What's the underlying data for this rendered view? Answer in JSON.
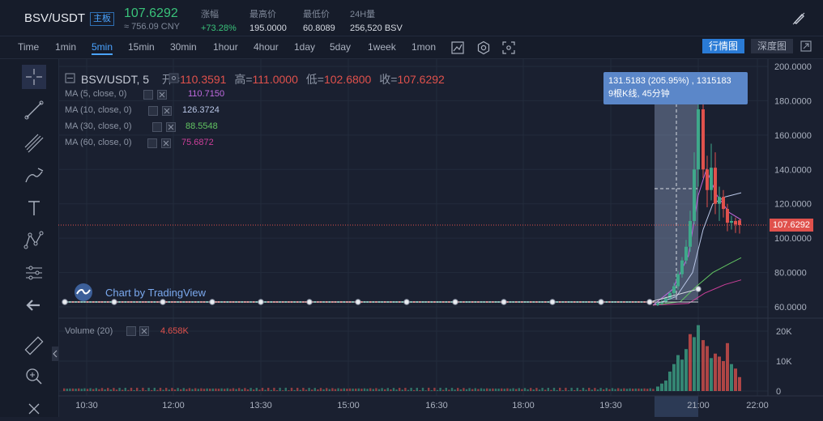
{
  "header": {
    "pair": "BSV/USDT",
    "tag": "主板",
    "price": "107.6292",
    "price_cny": "≈ 756.09 CNY",
    "stats": [
      {
        "label": "涨幅",
        "value": "+73.28%"
      },
      {
        "label": "最高价",
        "value": "195.0000"
      },
      {
        "label": "最低价",
        "value": "60.8089"
      },
      {
        "label": "24H量",
        "value": "256,520 BSV"
      }
    ]
  },
  "toolbar": {
    "intervals": [
      "Time",
      "1min",
      "5min",
      "15min",
      "30min",
      "1hour",
      "4hour",
      "1day",
      "5day",
      "1week",
      "1mon"
    ],
    "active_interval": "5min",
    "kline_label": "行情图",
    "depth_label": "深度图"
  },
  "legend": {
    "title": "BSV/USDT, 5",
    "open_label": "开=",
    "open": "110.3591",
    "high_label": "高=",
    "high": "111.0000",
    "low_label": "低=",
    "low": "102.6800",
    "close_label": "收=",
    "close": "107.6292"
  },
  "ma": [
    {
      "label": "MA (5, close, 0)",
      "value": "110.7150",
      "color": "#c06be0"
    },
    {
      "label": "MA (10, close, 0)",
      "value": "126.3724",
      "color": "#b9c6e6"
    },
    {
      "label": "MA (30, close, 0)",
      "value": "88.5548",
      "color": "#62c462"
    },
    {
      "label": "MA (60, close, 0)",
      "value": "75.6872",
      "color": "#cc3f9a"
    }
  ],
  "tooltip": {
    "line1": "131.5183 (205.95%) , 1315183",
    "line2": "9根K线, 45分钟"
  },
  "watermark": "Chart by TradingView",
  "volume": {
    "label": "Volume (20)",
    "value": "4.658K"
  },
  "price_axis": [
    "200.0000",
    "180.0000",
    "160.0000",
    "140.0000",
    "120.0000",
    "100.0000",
    "80.0000",
    "60.0000"
  ],
  "current_price_label": "107.6292",
  "volume_axis": [
    "20K",
    "10K",
    "0"
  ],
  "time_axis": [
    "10:30",
    "12:00",
    "13:30",
    "15:00",
    "16:30",
    "18:00",
    "19:30",
    "21:00",
    "22:00"
  ],
  "colors": {
    "up": "#3fa88a",
    "down": "#e0514c",
    "accent": "#2a7bd6"
  }
}
